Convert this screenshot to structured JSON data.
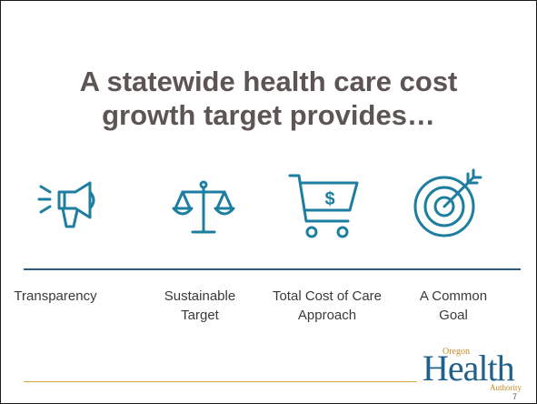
{
  "slide": {
    "title_line1": "A statewide health care cost",
    "title_line2": "growth target provides…",
    "items": [
      {
        "icon": "megaphone-icon",
        "line1": "Transparency",
        "line2": ""
      },
      {
        "icon": "scales-icon",
        "line1": "Sustainable",
        "line2": "Target"
      },
      {
        "icon": "shopping-cart-dollar-icon",
        "line1": "Total Cost of Care",
        "line2": "Approach"
      },
      {
        "icon": "target-arrow-icon",
        "line1": "A Common",
        "line2": "Goal"
      }
    ],
    "logo": {
      "word": "Health",
      "top": "Oregon",
      "bottom": "Authority"
    },
    "page_number": "7"
  },
  "colors": {
    "title": "#5d5553",
    "icon": "#1d7ea0",
    "divider_blue": "#2b5d80",
    "divider_gold": "#d6a840",
    "logo_blue": "#20608a",
    "logo_gold": "#c68a24"
  }
}
